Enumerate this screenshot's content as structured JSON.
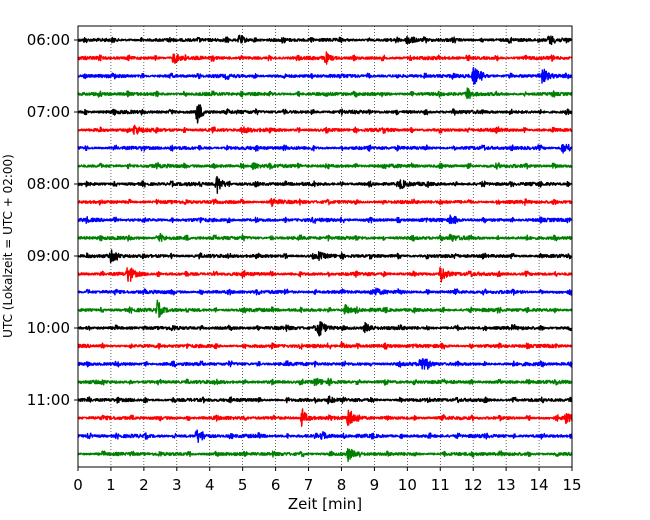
{
  "chart_data": {
    "type": "line",
    "title": "",
    "xlabel": "Zeit  [min]",
    "ylabel": "UTC (Lokalzeit = UTC + 02:00)",
    "x_range": [
      0,
      15
    ],
    "x_ticks": [
      "0",
      "1",
      "2",
      "3",
      "4",
      "5",
      "6",
      "7",
      "8",
      "9",
      "10",
      "11",
      "12",
      "13",
      "14",
      "15"
    ],
    "y_tick_labels": [
      "06:00",
      "07:00",
      "08:00",
      "09:00",
      "10:00",
      "11:00"
    ],
    "grid": "vertical dotted at each minute",
    "colors": [
      "#000000",
      "#ff0000",
      "#0000ff",
      "#008000"
    ],
    "traces": [
      {
        "start": "06:00",
        "color": "#000000",
        "events": [
          {
            "t": 4.9,
            "amp": 0.6
          },
          {
            "t": 10.0,
            "amp": 0.6
          },
          {
            "t": 14.3,
            "amp": 0.6
          }
        ]
      },
      {
        "start": "06:15",
        "color": "#ff0000",
        "events": [
          {
            "t": 2.9,
            "amp": 0.7
          },
          {
            "t": 7.5,
            "amp": 0.5
          }
        ]
      },
      {
        "start": "06:30",
        "color": "#0000ff",
        "events": [
          {
            "t": 12.0,
            "amp": 1.2
          },
          {
            "t": 14.1,
            "amp": 1.0
          }
        ]
      },
      {
        "start": "06:45",
        "color": "#008000",
        "events": [
          {
            "t": 11.8,
            "amp": 0.5
          }
        ]
      },
      {
        "start": "07:00",
        "color": "#000000",
        "events": [
          {
            "t": 3.6,
            "amp": 1.3
          }
        ]
      },
      {
        "start": "07:15",
        "color": "#ff0000",
        "events": [
          {
            "t": 1.7,
            "amp": 0.6
          },
          {
            "t": 5.0,
            "amp": 0.4
          }
        ]
      },
      {
        "start": "07:30",
        "color": "#0000ff",
        "events": [
          {
            "t": 14.7,
            "amp": 0.6
          }
        ]
      },
      {
        "start": "07:45",
        "color": "#008000",
        "events": [
          {
            "t": 5.3,
            "amp": 0.4
          }
        ]
      },
      {
        "start": "08:00",
        "color": "#000000",
        "events": [
          {
            "t": 4.2,
            "amp": 1.2
          },
          {
            "t": 9.8,
            "amp": 0.5
          }
        ]
      },
      {
        "start": "08:15",
        "color": "#ff0000",
        "events": [
          {
            "t": 5.9,
            "amp": 0.4
          }
        ]
      },
      {
        "start": "08:30",
        "color": "#0000ff",
        "events": [
          {
            "t": 11.3,
            "amp": 0.4
          }
        ]
      },
      {
        "start": "08:45",
        "color": "#008000",
        "events": [
          {
            "t": 2.5,
            "amp": 0.4
          },
          {
            "t": 11.3,
            "amp": 0.4
          }
        ]
      },
      {
        "start": "09:00",
        "color": "#000000",
        "events": [
          {
            "t": 1.0,
            "amp": 0.7
          },
          {
            "t": 7.3,
            "amp": 0.4
          }
        ]
      },
      {
        "start": "09:15",
        "color": "#ff0000",
        "events": [
          {
            "t": 1.5,
            "amp": 0.9
          },
          {
            "t": 11.0,
            "amp": 1.0
          }
        ]
      },
      {
        "start": "09:30",
        "color": "#0000ff",
        "events": [
          {
            "t": 9.0,
            "amp": 0.4
          }
        ]
      },
      {
        "start": "09:45",
        "color": "#008000",
        "events": [
          {
            "t": 2.4,
            "amp": 0.8
          },
          {
            "t": 8.1,
            "amp": 0.6
          }
        ]
      },
      {
        "start": "10:00",
        "color": "#000000",
        "events": [
          {
            "t": 7.3,
            "amp": 1.3
          },
          {
            "t": 8.7,
            "amp": 0.6
          }
        ]
      },
      {
        "start": "10:15",
        "color": "#ff0000",
        "events": [
          {
            "t": 8.0,
            "amp": 0.4
          }
        ]
      },
      {
        "start": "10:30",
        "color": "#0000ff",
        "events": [
          {
            "t": 10.4,
            "amp": 1.2
          }
        ]
      },
      {
        "start": "10:45",
        "color": "#008000",
        "events": [
          {
            "t": 7.2,
            "amp": 0.4
          }
        ]
      },
      {
        "start": "11:00",
        "color": "#000000",
        "events": [
          {
            "t": 7.6,
            "amp": 0.4
          }
        ]
      },
      {
        "start": "11:15",
        "color": "#ff0000",
        "events": [
          {
            "t": 6.8,
            "amp": 0.9
          },
          {
            "t": 8.2,
            "amp": 1.2
          },
          {
            "t": 14.8,
            "amp": 0.6
          }
        ]
      },
      {
        "start": "11:30",
        "color": "#0000ff",
        "events": [
          {
            "t": 3.6,
            "amp": 0.8
          },
          {
            "t": 7.4,
            "amp": 0.5
          }
        ]
      },
      {
        "start": "11:45",
        "color": "#008000",
        "events": [
          {
            "t": 8.2,
            "amp": 0.7
          }
        ]
      }
    ]
  }
}
